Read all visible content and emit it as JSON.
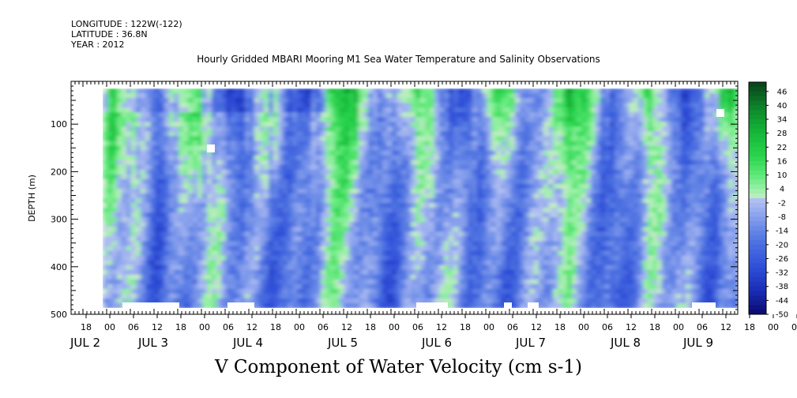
{
  "header": {
    "longitude": "LONGITUDE : 122W(-122)",
    "latitude": "LATITUDE : 36.8N",
    "year": "YEAR : 2012"
  },
  "title": "Hourly Gridded MBARI Mooring M1 Sea Water Temperature and Salinity Observations",
  "bottom_title": "V Component of Water Velocity (cm s-1)",
  "chart_data": {
    "type": "heatmap",
    "ylabel": "DEPTH (m)",
    "y_ticks": [
      100,
      200,
      300,
      400,
      500
    ],
    "ylim": [
      500,
      10
    ],
    "x_hour_ticks": [
      "18",
      "00",
      "06",
      "12",
      "18",
      "00",
      "06",
      "12",
      "18",
      "00",
      "06",
      "12",
      "18",
      "00",
      "06",
      "12",
      "18",
      "00",
      "06",
      "12",
      "18",
      "00",
      "06",
      "12",
      "18",
      "00",
      "06",
      "12",
      "18",
      "00",
      "06",
      "12"
    ],
    "x_day_labels": [
      "JUL  2",
      "JUL  3",
      "JUL  4",
      "JUL  5",
      "JUL  6",
      "JUL  7",
      "JUL  8",
      "JUL  9"
    ],
    "colorbar_labels": [
      "46",
      "40",
      "34",
      "28",
      "22",
      "16",
      "10",
      "4",
      "-2",
      "-8",
      "-14",
      "-20",
      "-26",
      "-32",
      "-38",
      "-44",
      "-50"
    ],
    "value_range": [
      -50,
      50
    ],
    "data_depth_range": [
      20,
      480
    ],
    "colors": {
      "deep_negative": "#0a1a8c",
      "mid_negative": "#4a6ee0",
      "near_zero_negative": "#a9b8f0",
      "near_zero_positive": "#a8f0b4",
      "mid_positive": "#22d84a",
      "strong_positive": "#0e5a22"
    }
  }
}
